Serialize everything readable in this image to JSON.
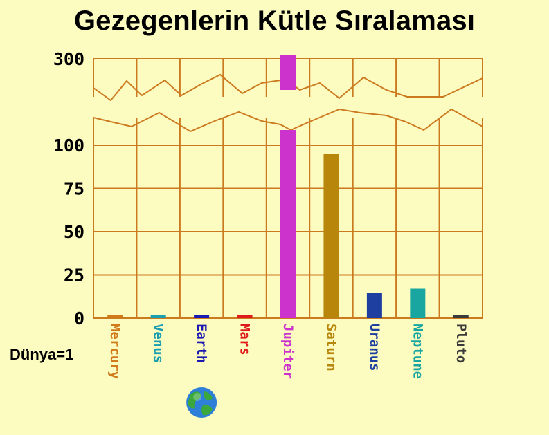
{
  "title": "Gezegenlerin Kütle Sıralaması",
  "unit_note": "Dünya=1",
  "colors": {
    "background": "#fdfcc0",
    "grid": "#cc7a1f"
  },
  "earth_icon": "earth-globe-icon",
  "chart_data": {
    "type": "bar",
    "title": "Gezegenlerin Kütle Sıralaması",
    "ylabel": "",
    "xlabel": "",
    "y_ticks": [
      0,
      25,
      50,
      75,
      100,
      300
    ],
    "axis_break": [
      115,
      290
    ],
    "ylim": [
      0,
      300
    ],
    "grid": true,
    "categories": [
      "Mercury",
      "Venus",
      "Earth",
      "Mars",
      "Jupiter",
      "Saturn",
      "Uranus",
      "Neptune",
      "Pluto"
    ],
    "values": [
      0.06,
      0.82,
      1,
      0.11,
      318,
      95,
      14.5,
      17,
      0.002
    ],
    "bar_colors": [
      "#d07a1a",
      "#1a9fb0",
      "#1a1ab0",
      "#e01a1a",
      "#cc33cc",
      "#b8860b",
      "#1f3fa0",
      "#1aa6a0",
      "#3a3a3a"
    ]
  }
}
